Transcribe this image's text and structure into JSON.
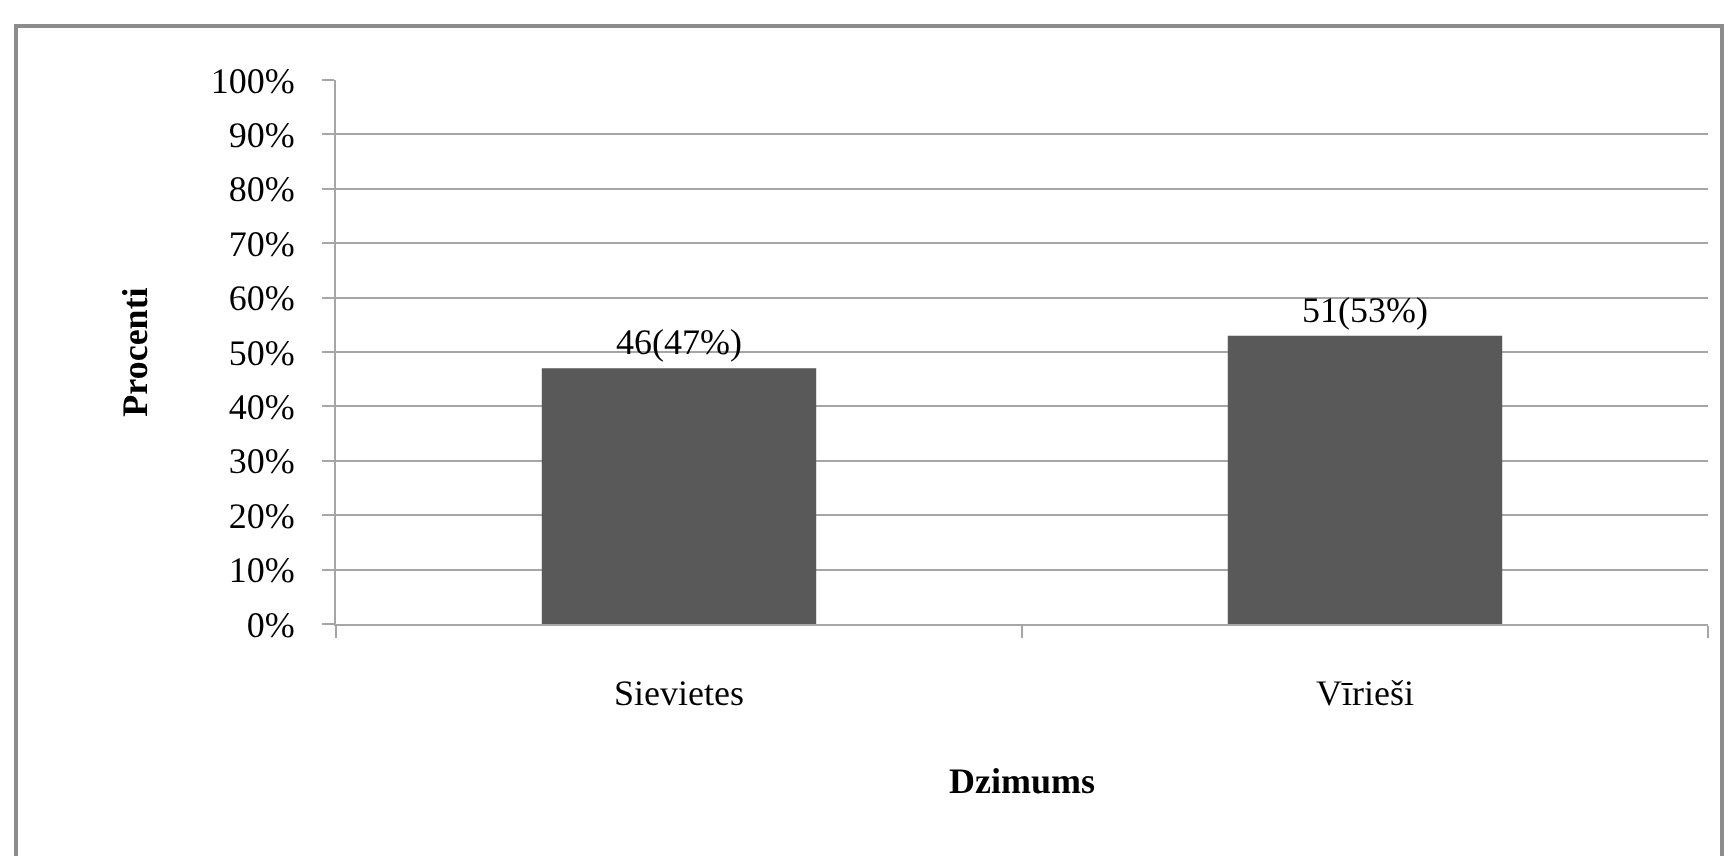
{
  "chart_data": {
    "type": "bar",
    "xlabel": "Dzimums",
    "ylabel": "Procenti",
    "categories": [
      "Sievietes",
      "Vīrieši"
    ],
    "values": [
      47,
      53
    ],
    "color": "#595959",
    "value_labels": [
      "46(47%)",
      "51(53%)"
    ],
    "ylim": [
      0,
      100
    ],
    "yticks": [
      {
        "value": 0,
        "label": "0%"
      },
      {
        "value": 10,
        "label": "10%"
      },
      {
        "value": 20,
        "label": "20%"
      },
      {
        "value": 30,
        "label": "30%"
      },
      {
        "value": 40,
        "label": "40%"
      },
      {
        "value": 50,
        "label": "50%"
      },
      {
        "value": 60,
        "label": "60%"
      },
      {
        "value": 70,
        "label": "70%"
      },
      {
        "value": 80,
        "label": "80%"
      },
      {
        "value": 90,
        "label": "90%"
      },
      {
        "value": 100,
        "label": "100%"
      }
    ],
    "grid": "y"
  }
}
